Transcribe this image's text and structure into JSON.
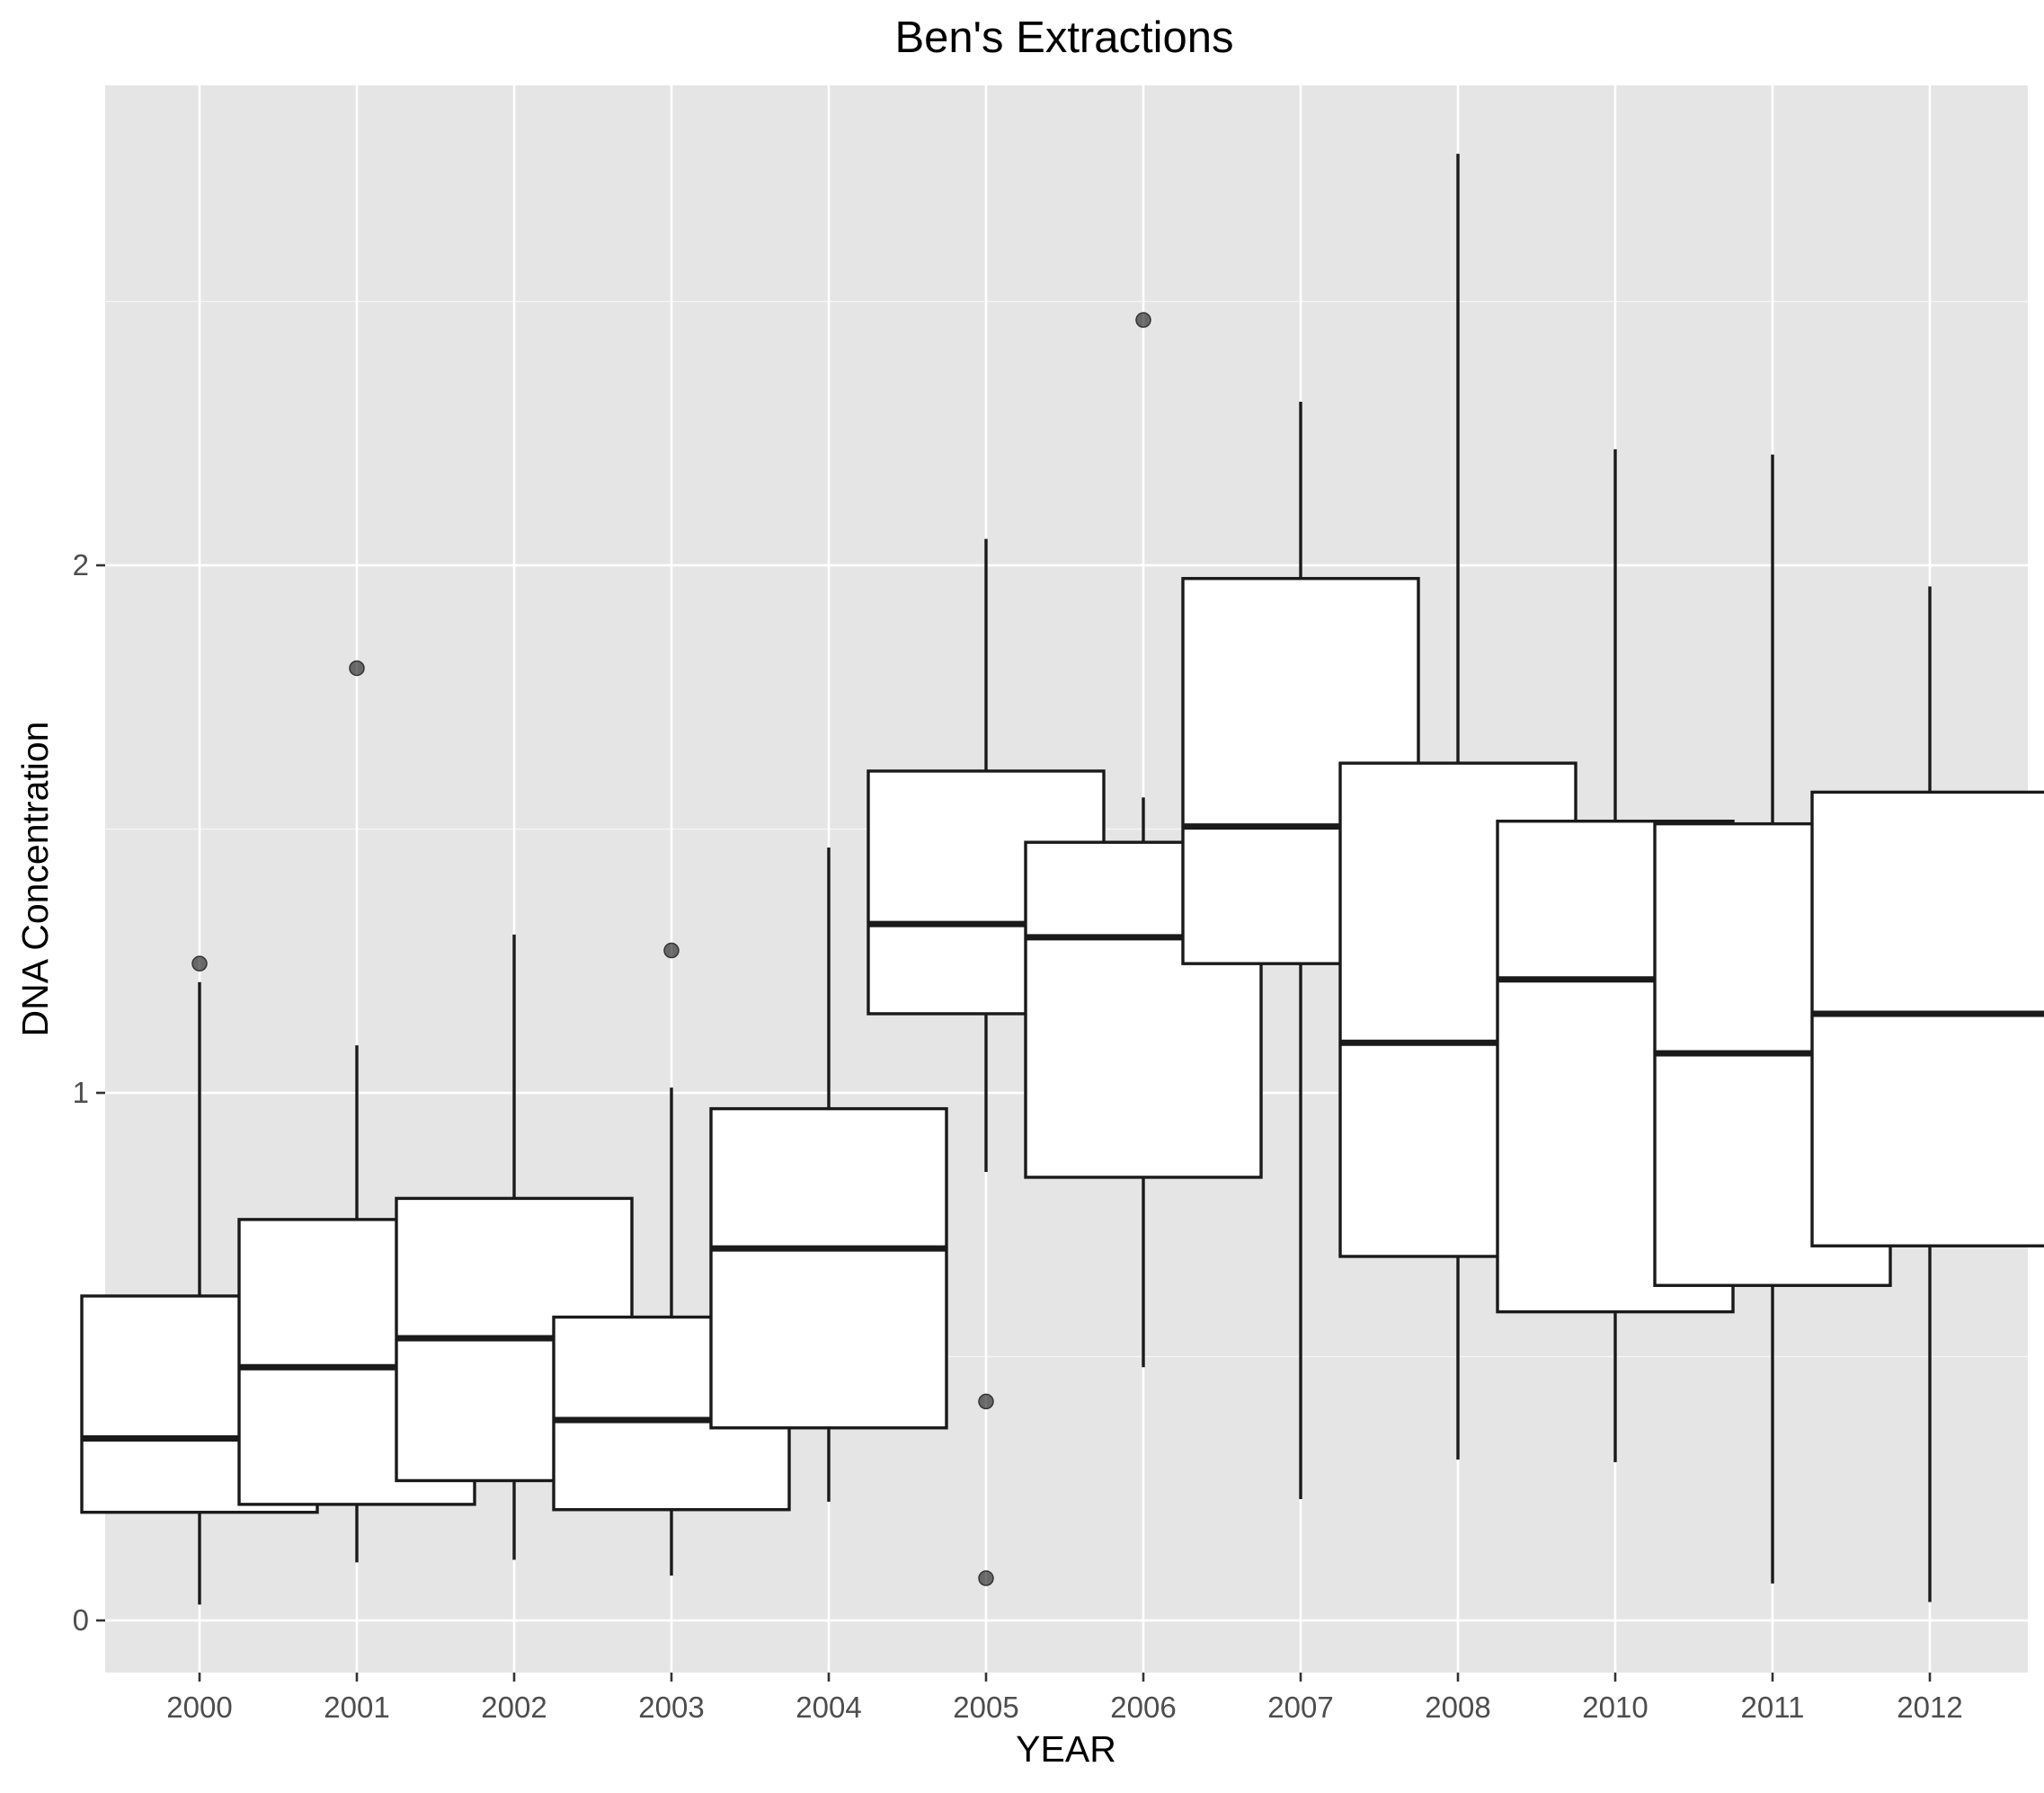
{
  "chart_data": {
    "type": "box",
    "title": "Ben's Extractions",
    "xlabel": "YEAR",
    "ylabel": "DNA Concentration",
    "ylim": [
      -0.1,
      2.92
    ],
    "y_ticks": [
      0,
      1,
      2
    ],
    "grid": true,
    "categories": [
      "2000",
      "2001",
      "2002",
      "2003",
      "2004",
      "2005",
      "2006",
      "2007",
      "2008",
      "2010",
      "2011",
      "2012"
    ],
    "boxes": [
      {
        "category": "2000",
        "lower_whisker": 0.03,
        "q1": 0.205,
        "median": 0.345,
        "q3": 0.615,
        "upper_whisker": 1.21,
        "outliers": [
          1.245
        ]
      },
      {
        "category": "2001",
        "lower_whisker": 0.11,
        "q1": 0.22,
        "median": 0.48,
        "q3": 0.76,
        "upper_whisker": 1.09,
        "outliers": [
          1.805
        ]
      },
      {
        "category": "2002",
        "lower_whisker": 0.115,
        "q1": 0.265,
        "median": 0.535,
        "q3": 0.8,
        "upper_whisker": 1.3,
        "outliers": []
      },
      {
        "category": "2003",
        "lower_whisker": 0.085,
        "q1": 0.21,
        "median": 0.38,
        "q3": 0.575,
        "upper_whisker": 1.01,
        "outliers": [
          1.27
        ]
      },
      {
        "category": "2004",
        "lower_whisker": 0.225,
        "q1": 0.365,
        "median": 0.705,
        "q3": 0.97,
        "upper_whisker": 1.465,
        "outliers": []
      },
      {
        "category": "2005",
        "lower_whisker": 0.85,
        "q1": 1.15,
        "median": 1.32,
        "q3": 1.61,
        "upper_whisker": 2.05,
        "outliers": [
          0.415,
          0.08
        ]
      },
      {
        "category": "2006",
        "lower_whisker": 0.48,
        "q1": 0.84,
        "median": 1.295,
        "q3": 1.475,
        "upper_whisker": 1.56,
        "outliers": [
          2.465
        ]
      },
      {
        "category": "2007",
        "lower_whisker": 0.23,
        "q1": 1.245,
        "median": 1.505,
        "q3": 1.975,
        "upper_whisker": 2.31,
        "outliers": []
      },
      {
        "category": "2008",
        "lower_whisker": 0.305,
        "q1": 0.69,
        "median": 1.095,
        "q3": 1.625,
        "upper_whisker": 2.78,
        "outliers": []
      },
      {
        "category": "2010",
        "lower_whisker": 0.3,
        "q1": 0.585,
        "median": 1.215,
        "q3": 1.515,
        "upper_whisker": 2.22,
        "outliers": []
      },
      {
        "category": "2011",
        "lower_whisker": 0.07,
        "q1": 0.635,
        "median": 1.075,
        "q3": 1.51,
        "upper_whisker": 2.21,
        "outliers": []
      },
      {
        "category": "2012",
        "lower_whisker": 0.035,
        "q1": 0.71,
        "median": 1.15,
        "q3": 1.57,
        "upper_whisker": 1.96,
        "outliers": []
      }
    ]
  }
}
